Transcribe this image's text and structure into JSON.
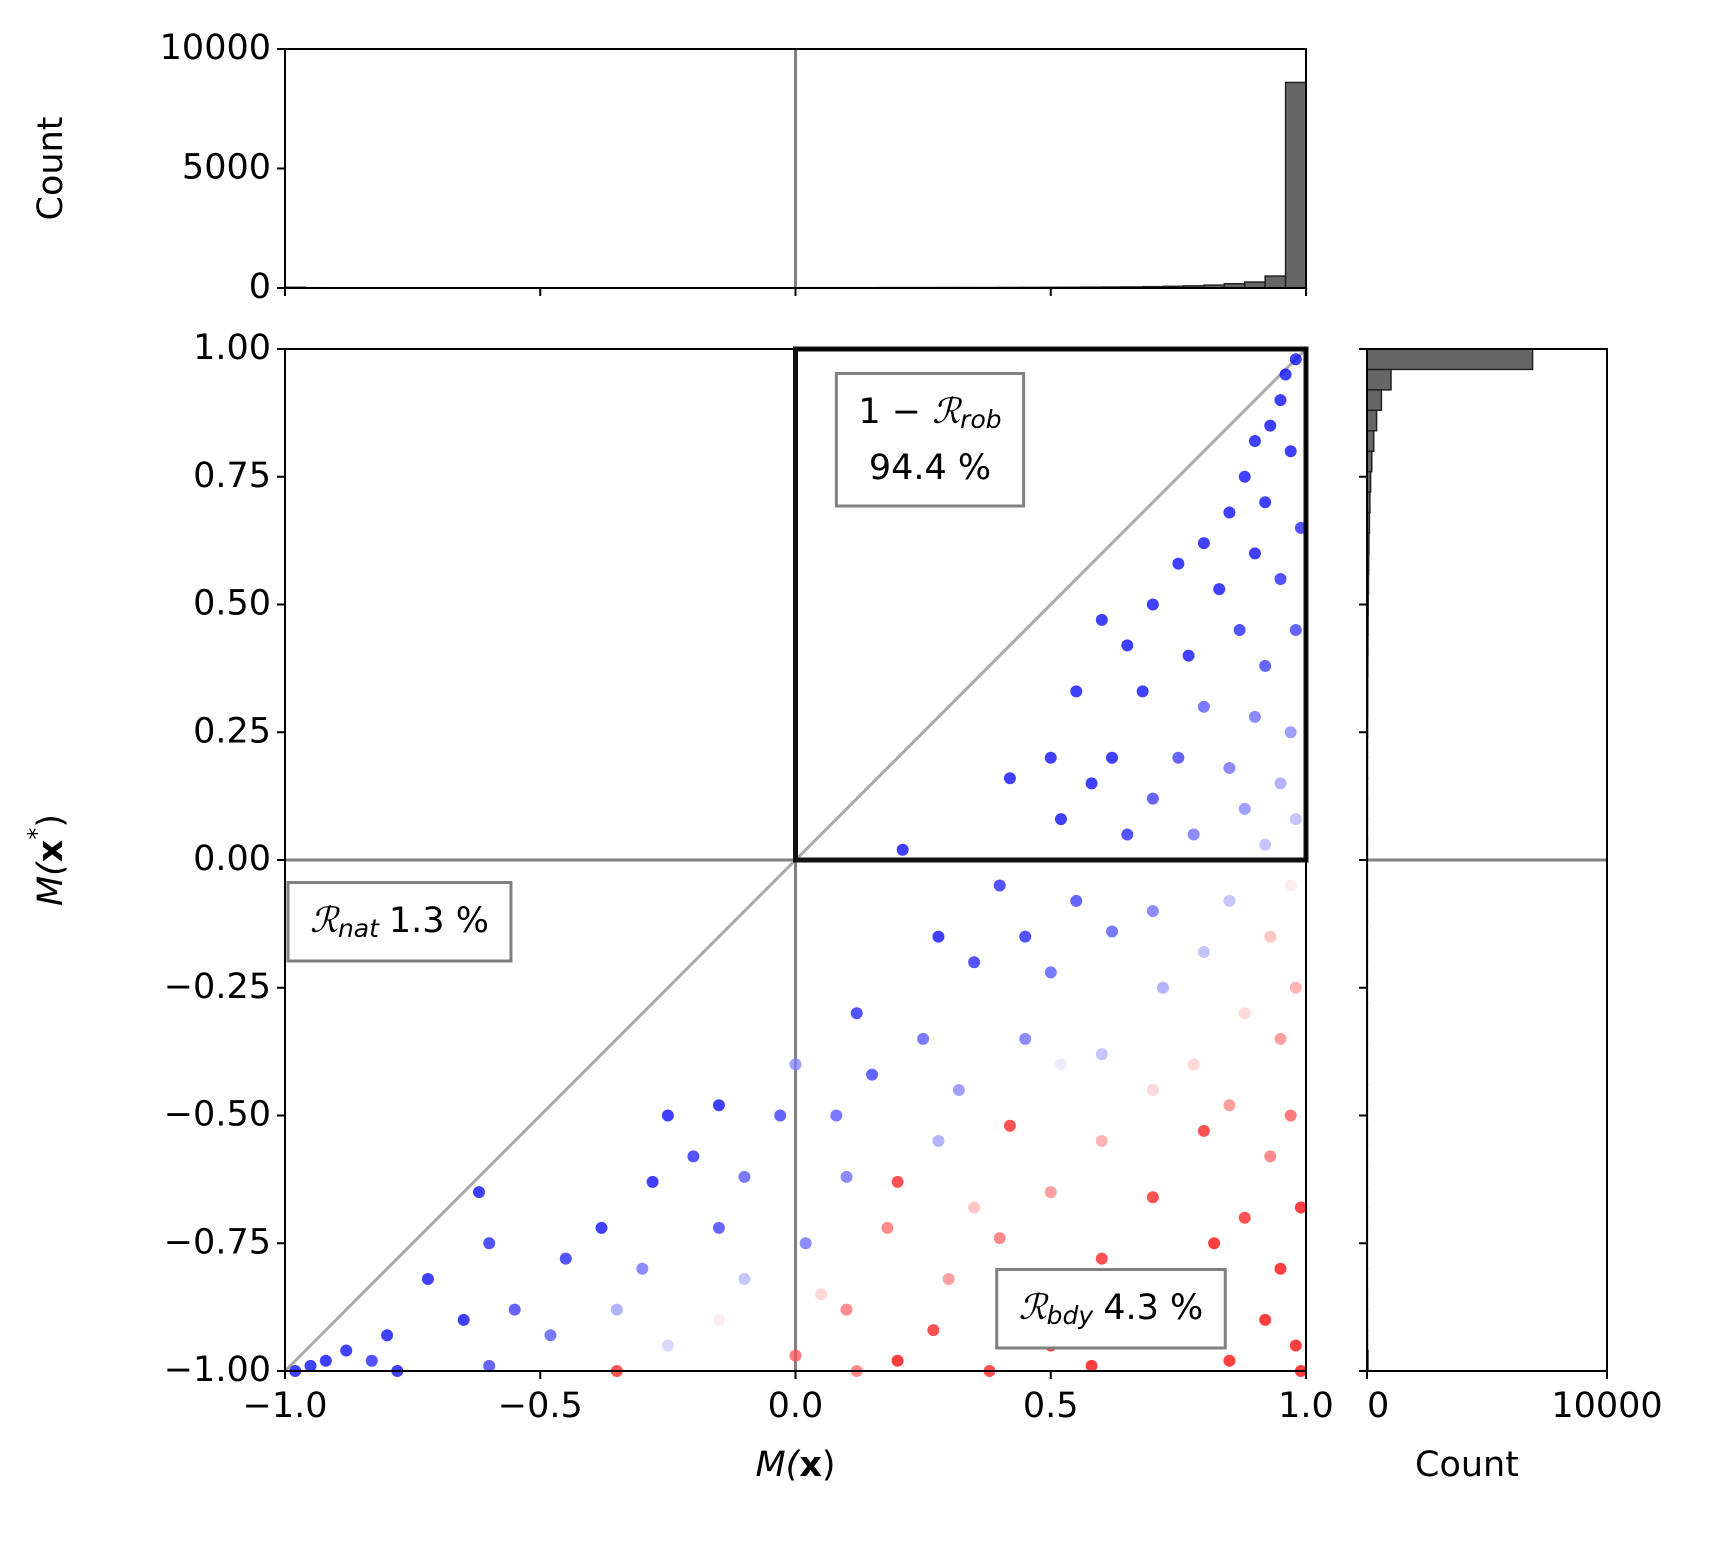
{
  "chart_data": [
    {
      "type": "scatter",
      "xlabel": {
        "pre": "M(",
        "bold": "x",
        "post": ")"
      },
      "ylabel": {
        "pre": "M(",
        "bold": "x",
        "sup": "*",
        "post": ")"
      },
      "xlim": [
        -1,
        1
      ],
      "ylim": [
        -1,
        1
      ],
      "xticks": [
        {
          "value": -1,
          "label": "−1.0"
        },
        {
          "value": -0.5,
          "label": "−0.5"
        },
        {
          "value": 0,
          "label": "0.0"
        },
        {
          "value": 0.5,
          "label": "0.5"
        },
        {
          "value": 1,
          "label": "1.0"
        }
      ],
      "yticks": [
        {
          "value": -1,
          "label": "−1.00"
        },
        {
          "value": -0.75,
          "label": "−0.75"
        },
        {
          "value": -0.5,
          "label": "−0.50"
        },
        {
          "value": -0.25,
          "label": "−0.25"
        },
        {
          "value": 0,
          "label": "0.00"
        },
        {
          "value": 0.25,
          "label": "0.25"
        },
        {
          "value": 0.5,
          "label": "0.50"
        },
        {
          "value": 0.75,
          "label": "0.75"
        },
        {
          "value": 1,
          "label": "1.00"
        }
      ],
      "hline": 0,
      "vline": 0,
      "diagonal": true,
      "box": {
        "x": [
          0,
          1
        ],
        "y": [
          0,
          1
        ]
      },
      "cmap": [
        "#0000ff",
        "#ffffff",
        "#ff0000"
      ],
      "clim": [
        -1,
        1
      ],
      "alpha": 0.75,
      "x": [
        0.98,
        0.96,
        0.95,
        0.93,
        0.9,
        0.97,
        0.88,
        0.92,
        0.85,
        0.99,
        0.8,
        0.9,
        0.95,
        0.83,
        0.75,
        0.7,
        0.87,
        0.98,
        0.77,
        0.92,
        0.65,
        0.6,
        0.55,
        0.68,
        0.8,
        0.9,
        0.97,
        0.5,
        0.62,
        0.75,
        0.85,
        0.95,
        0.42,
        0.58,
        0.7,
        0.88,
        0.98,
        0.52,
        0.65,
        0.78,
        0.92,
        0.21,
        0.4,
        0.55,
        0.7,
        0.85,
        0.97,
        0.28,
        0.45,
        0.62,
        0.8,
        0.93,
        0.98,
        0.35,
        0.5,
        0.72,
        0.88,
        0.12,
        0.25,
        0.45,
        0.6,
        0.78,
        0.95,
        0,
        0.15,
        0.32,
        0.52,
        0.7,
        0.85,
        0.97,
        -0.15,
        -0.03,
        0.08,
        0.28,
        0.42,
        0.6,
        0.8,
        0.93,
        -0.25,
        -0.2,
        -0.28,
        -0.1,
        0.1,
        0.2,
        0.35,
        0.5,
        0.7,
        0.88,
        0.99,
        -0.38,
        -0.15,
        0.02,
        0.18,
        0.4,
        0.6,
        0.82,
        0.95,
        -0.62,
        -0.6,
        -0.45,
        -0.3,
        -0.1,
        0.05,
        0.3,
        0.55,
        0.75,
        0.92,
        -0.72,
        -0.55,
        -0.35,
        -0.15,
        0.1,
        0.27,
        0.5,
        0.7,
        0.98,
        -0.8,
        -0.65,
        -0.48,
        -0.25,
        0,
        0.2,
        0.58,
        0.85,
        -0.95,
        -0.88,
        -0.78,
        -0.6,
        -0.35,
        0.12,
        0.38,
        0.99,
        -0.98,
        -0.92,
        -0.83
      ],
      "y": [
        0.98,
        0.95,
        0.9,
        0.85,
        0.82,
        0.8,
        0.75,
        0.7,
        0.68,
        0.65,
        0.62,
        0.6,
        0.55,
        0.53,
        0.58,
        0.5,
        0.45,
        0.45,
        0.4,
        0.38,
        0.42,
        0.47,
        0.33,
        0.33,
        0.3,
        0.28,
        0.25,
        0.2,
        0.2,
        0.2,
        0.18,
        0.15,
        0.16,
        0.15,
        0.12,
        0.1,
        0.08,
        0.08,
        0.05,
        0.05,
        0.03,
        0.02,
        -0.05,
        -0.08,
        -0.1,
        -0.08,
        -0.05,
        -0.15,
        -0.15,
        -0.14,
        -0.18,
        -0.15,
        -0.25,
        -0.2,
        -0.22,
        -0.25,
        -0.3,
        -0.3,
        -0.35,
        -0.35,
        -0.38,
        -0.4,
        -0.35,
        -0.4,
        -0.42,
        -0.45,
        -0.4,
        -0.45,
        -0.48,
        -0.5,
        -0.48,
        -0.5,
        -0.5,
        -0.55,
        -0.52,
        -0.55,
        -0.53,
        -0.58,
        -0.5,
        -0.58,
        -0.63,
        -0.62,
        -0.62,
        -0.63,
        -0.68,
        -0.65,
        -0.66,
        -0.7,
        -0.68,
        -0.72,
        -0.72,
        -0.75,
        -0.72,
        -0.74,
        -0.78,
        -0.75,
        -0.8,
        -0.65,
        -0.75,
        -0.78,
        -0.8,
        -0.82,
        -0.85,
        -0.82,
        -0.85,
        -0.88,
        -0.9,
        -0.82,
        -0.88,
        -0.88,
        -0.9,
        -0.88,
        -0.92,
        -0.95,
        -0.93,
        -0.95,
        -0.93,
        -0.9,
        -0.93,
        -0.95,
        -0.97,
        -0.98,
        -0.99,
        -0.98,
        -0.99,
        -0.96,
        -1,
        -0.99,
        -1,
        -1,
        -1,
        -1,
        -1,
        -0.98,
        -0.98
      ],
      "c": [
        -1,
        -1,
        -1,
        -1,
        -1,
        -1,
        -1,
        -1,
        -1,
        -0.9,
        -1,
        -1,
        -0.9,
        -1,
        -1,
        -1,
        -0.9,
        -0.8,
        -1,
        -0.8,
        -1,
        -1,
        -1,
        -1,
        -0.7,
        -0.6,
        -0.5,
        -1,
        -1,
        -0.8,
        -0.6,
        -0.4,
        -1,
        -1,
        -0.8,
        -0.5,
        -0.3,
        -1,
        -0.9,
        -0.6,
        -0.3,
        -1,
        -0.9,
        -0.8,
        -0.6,
        -0.3,
        0.1,
        -1,
        -0.9,
        -0.7,
        -0.3,
        0.3,
        0.4,
        -0.9,
        -0.7,
        -0.4,
        0.2,
        -0.9,
        -0.7,
        -0.6,
        -0.3,
        0.2,
        0.5,
        -0.5,
        -0.8,
        -0.5,
        -0.1,
        0.2,
        0.5,
        0.7,
        -1,
        -0.8,
        -0.7,
        -0.4,
        0.9,
        0.4,
        0.9,
        0.6,
        -1,
        -0.9,
        -1,
        -0.7,
        -0.6,
        0.9,
        0.3,
        0.5,
        0.9,
        0.9,
        1,
        -1,
        -0.8,
        -0.6,
        0.6,
        0.6,
        0.9,
        1,
        1,
        -1,
        -0.9,
        -0.9,
        -0.6,
        -0.3,
        0.2,
        0.5,
        0.9,
        1,
        1,
        -1,
        -0.8,
        -0.4,
        0.1,
        0.6,
        0.9,
        1,
        0.9,
        1,
        -1,
        -1,
        -0.7,
        -0.2,
        0.7,
        1,
        1,
        1,
        -1,
        -1,
        -1,
        -0.8,
        0.9,
        0.6,
        0.9,
        1,
        -1,
        -1,
        -0.9
      ],
      "annotations": [
        {
          "pre": "1 − ",
          "sym": "ℛ",
          "sub": "rob",
          "text": "94.4 %"
        },
        {
          "sym": "ℛ",
          "sub": "nat",
          "text": "1.3 %"
        },
        {
          "sym": "ℛ",
          "sub": "bdy",
          "text": "4.3 %"
        }
      ]
    },
    {
      "type": "histogram",
      "orientation": "vertical",
      "ylabel": "Count",
      "color": "#666666",
      "edgecolor": "#222222",
      "xlim": [
        -1,
        1
      ],
      "xticks": [
        -1,
        -0.5,
        0,
        0.5,
        1
      ],
      "ylim": [
        0,
        10000
      ],
      "yticks": [
        0,
        5000,
        10000
      ],
      "vline": 0,
      "bins": [
        -1,
        -0.96,
        -0.92,
        -0.88,
        -0.84,
        -0.8,
        -0.76,
        -0.72,
        -0.68,
        -0.64,
        -0.6,
        -0.56,
        -0.52,
        -0.48,
        -0.44,
        -0.4,
        -0.36,
        -0.32,
        -0.28,
        -0.24,
        -0.2,
        -0.16,
        -0.12,
        -0.08,
        -0.04,
        0,
        0.04,
        0.08,
        0.12,
        0.16,
        0.2,
        0.24,
        0.28,
        0.32,
        0.36,
        0.4,
        0.44,
        0.48,
        0.52,
        0.56,
        0.6,
        0.64,
        0.68,
        0.72,
        0.76,
        0.8,
        0.84,
        0.88,
        0.92,
        0.96,
        1
      ],
      "values": [
        30,
        12,
        10,
        10,
        8,
        8,
        8,
        8,
        8,
        8,
        8,
        8,
        8,
        8,
        8,
        8,
        8,
        8,
        10,
        10,
        10,
        10,
        10,
        10,
        10,
        12,
        12,
        12,
        12,
        15,
        15,
        15,
        18,
        18,
        20,
        22,
        25,
        28,
        30,
        35,
        40,
        45,
        55,
        70,
        90,
        120,
        180,
        250,
        500,
        8600
      ]
    },
    {
      "type": "histogram",
      "orientation": "horizontal",
      "xlabel": "Count",
      "color": "#666666",
      "edgecolor": "#222222",
      "xlim": [
        0,
        10000
      ],
      "xticks": [
        0,
        10000
      ],
      "ylim": [
        -1,
        1
      ],
      "yticks": [
        -1,
        -0.75,
        -0.5,
        -0.25,
        0,
        0.25,
        0.5,
        0.75,
        1
      ],
      "hline": 0,
      "bins": [
        -1,
        -0.96,
        -0.92,
        -0.88,
        -0.84,
        -0.8,
        -0.76,
        -0.72,
        -0.68,
        -0.64,
        -0.6,
        -0.56,
        -0.52,
        -0.48,
        -0.44,
        -0.4,
        -0.36,
        -0.32,
        -0.28,
        -0.24,
        -0.2,
        -0.16,
        -0.12,
        -0.08,
        -0.04,
        0,
        0.04,
        0.08,
        0.12,
        0.16,
        0.2,
        0.24,
        0.28,
        0.32,
        0.36,
        0.4,
        0.44,
        0.48,
        0.52,
        0.56,
        0.6,
        0.64,
        0.68,
        0.72,
        0.76,
        0.8,
        0.84,
        0.88,
        0.92,
        0.96,
        1
      ],
      "values": [
        40,
        20,
        18,
        18,
        15,
        15,
        15,
        15,
        15,
        15,
        15,
        15,
        15,
        15,
        15,
        15,
        15,
        15,
        15,
        15,
        15,
        15,
        15,
        15,
        15,
        18,
        18,
        18,
        20,
        20,
        22,
        25,
        28,
        30,
        35,
        40,
        45,
        50,
        60,
        70,
        80,
        100,
        120,
        150,
        200,
        280,
        400,
        600,
        1000,
        6900
      ]
    }
  ]
}
